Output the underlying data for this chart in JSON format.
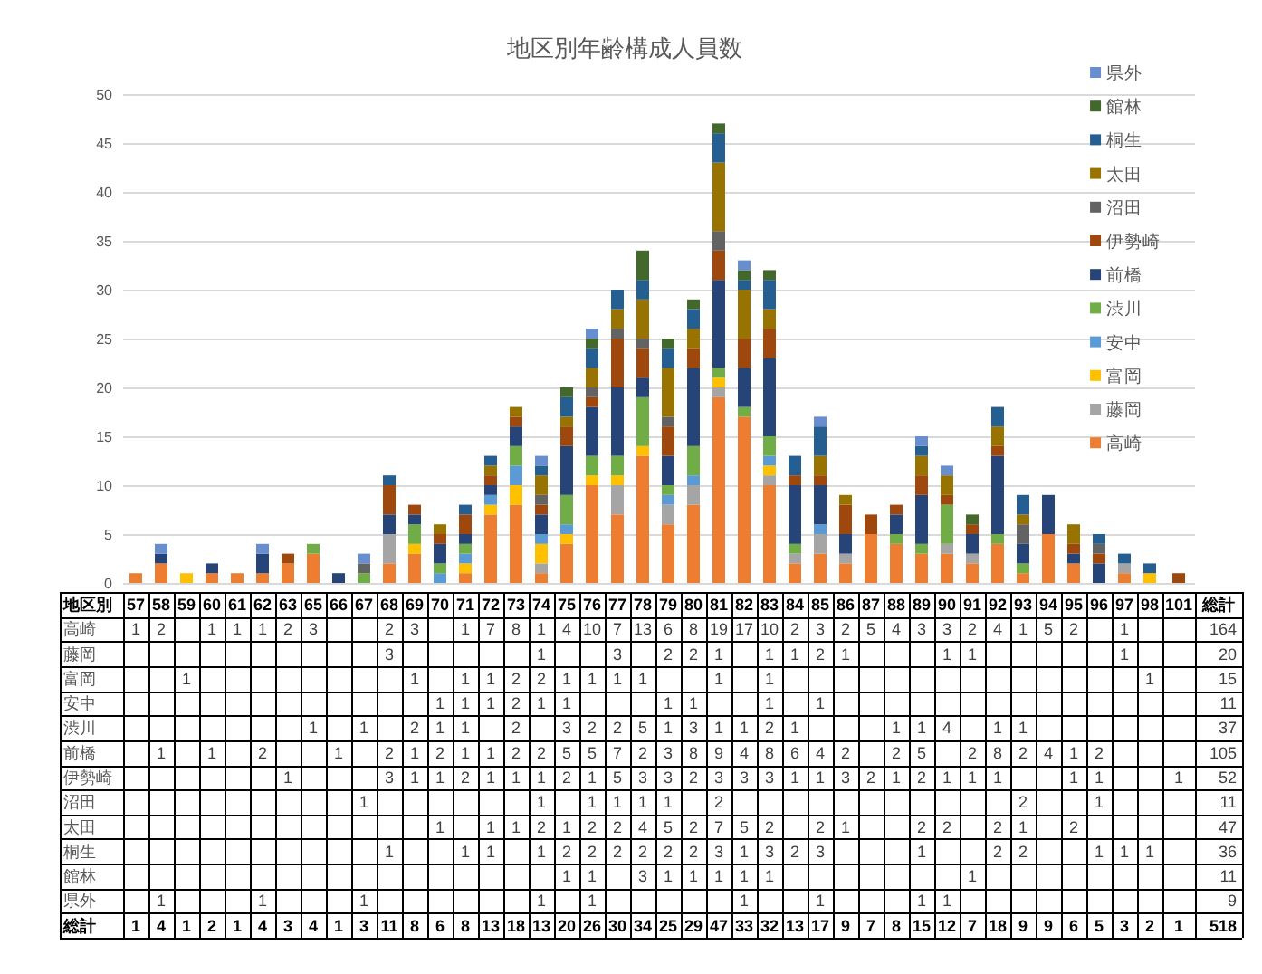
{
  "chart_data": {
    "type": "bar",
    "title": "地区別年齢構成人員数",
    "legend_title": "地区別",
    "categories": [
      "57",
      "58",
      "59",
      "60",
      "61",
      "62",
      "63",
      "65",
      "66",
      "67",
      "68",
      "69",
      "70",
      "71",
      "72",
      "73",
      "74",
      "75",
      "76",
      "77",
      "78",
      "79",
      "80",
      "81",
      "82",
      "83",
      "84",
      "85",
      "86",
      "87",
      "88",
      "89",
      "90",
      "91",
      "92",
      "93",
      "94",
      "95",
      "96",
      "97",
      "98",
      "101"
    ],
    "series": [
      {
        "name": "高崎",
        "color": "#ed7d31",
        "values": [
          1,
          2,
          null,
          1,
          1,
          1,
          2,
          3,
          null,
          null,
          2,
          3,
          null,
          1,
          7,
          8,
          1,
          4,
          10,
          7,
          13,
          6,
          8,
          19,
          17,
          10,
          2,
          3,
          2,
          5,
          4,
          3,
          3,
          2,
          4,
          1,
          5,
          2,
          null,
          1,
          null,
          null
        ]
      },
      {
        "name": "藤岡",
        "color": "#a5a5a5",
        "values": [
          null,
          null,
          null,
          null,
          null,
          null,
          null,
          null,
          null,
          null,
          3,
          null,
          null,
          null,
          null,
          null,
          1,
          null,
          null,
          3,
          null,
          2,
          2,
          1,
          null,
          1,
          1,
          2,
          1,
          null,
          null,
          null,
          1,
          1,
          null,
          null,
          null,
          null,
          null,
          1,
          null,
          null
        ]
      },
      {
        "name": "富岡",
        "color": "#ffc000",
        "values": [
          null,
          null,
          1,
          null,
          null,
          null,
          null,
          null,
          null,
          null,
          null,
          1,
          null,
          1,
          1,
          2,
          2,
          1,
          1,
          1,
          1,
          null,
          null,
          1,
          null,
          1,
          null,
          null,
          null,
          null,
          null,
          null,
          null,
          null,
          null,
          null,
          null,
          null,
          null,
          null,
          1,
          null
        ]
      },
      {
        "name": "安中",
        "color": "#5b9bd5",
        "values": [
          null,
          null,
          null,
          null,
          null,
          null,
          null,
          null,
          null,
          null,
          null,
          null,
          1,
          1,
          1,
          2,
          1,
          1,
          null,
          null,
          null,
          1,
          1,
          null,
          null,
          1,
          null,
          1,
          null,
          null,
          null,
          null,
          null,
          null,
          null,
          null,
          null,
          null,
          null,
          null,
          null,
          null
        ]
      },
      {
        "name": "渋川",
        "color": "#70ad47",
        "values": [
          null,
          null,
          null,
          null,
          null,
          null,
          null,
          1,
          null,
          1,
          null,
          2,
          1,
          1,
          null,
          2,
          null,
          3,
          2,
          2,
          5,
          1,
          3,
          1,
          1,
          2,
          1,
          null,
          null,
          null,
          1,
          1,
          4,
          null,
          1,
          1,
          null,
          null,
          null,
          null,
          null,
          null
        ]
      },
      {
        "name": "前橋",
        "color": "#264478",
        "values": [
          null,
          1,
          null,
          1,
          null,
          2,
          null,
          null,
          1,
          null,
          2,
          1,
          2,
          1,
          1,
          2,
          2,
          5,
          5,
          7,
          2,
          3,
          8,
          9,
          4,
          8,
          6,
          4,
          2,
          null,
          2,
          5,
          null,
          2,
          8,
          2,
          4,
          1,
          2,
          null,
          null,
          null
        ]
      },
      {
        "name": "伊勢崎",
        "color": "#9e480e",
        "values": [
          null,
          null,
          null,
          null,
          null,
          null,
          1,
          null,
          null,
          null,
          3,
          1,
          1,
          2,
          1,
          1,
          1,
          2,
          1,
          5,
          3,
          3,
          2,
          3,
          3,
          3,
          1,
          1,
          3,
          2,
          1,
          2,
          1,
          1,
          1,
          null,
          null,
          1,
          1,
          null,
          null,
          1
        ]
      },
      {
        "name": "沼田",
        "color": "#636363",
        "values": [
          null,
          null,
          null,
          null,
          null,
          null,
          null,
          null,
          null,
          1,
          null,
          null,
          null,
          null,
          null,
          null,
          1,
          null,
          1,
          1,
          1,
          1,
          null,
          2,
          null,
          null,
          null,
          null,
          null,
          null,
          null,
          null,
          null,
          null,
          null,
          2,
          null,
          null,
          1,
          null,
          null,
          null
        ]
      },
      {
        "name": "太田",
        "color": "#997300",
        "values": [
          null,
          null,
          null,
          null,
          null,
          null,
          null,
          null,
          null,
          null,
          null,
          null,
          1,
          null,
          1,
          1,
          2,
          1,
          2,
          2,
          4,
          5,
          2,
          7,
          5,
          2,
          null,
          2,
          1,
          null,
          null,
          2,
          2,
          null,
          2,
          1,
          null,
          2,
          null,
          null,
          null,
          null
        ]
      },
      {
        "name": "桐生",
        "color": "#255e91",
        "values": [
          null,
          null,
          null,
          null,
          null,
          null,
          null,
          null,
          null,
          null,
          1,
          null,
          null,
          1,
          1,
          null,
          1,
          2,
          2,
          2,
          2,
          2,
          2,
          3,
          1,
          3,
          2,
          3,
          null,
          null,
          null,
          1,
          null,
          null,
          2,
          2,
          null,
          null,
          1,
          1,
          1,
          null
        ]
      },
      {
        "name": "館林",
        "color": "#43682b",
        "values": [
          null,
          null,
          null,
          null,
          null,
          null,
          null,
          null,
          null,
          null,
          null,
          null,
          null,
          null,
          null,
          null,
          null,
          1,
          1,
          null,
          3,
          1,
          1,
          1,
          1,
          1,
          null,
          null,
          null,
          null,
          null,
          null,
          null,
          1,
          null,
          null,
          null,
          null,
          null,
          null,
          null,
          null
        ]
      },
      {
        "name": "県外",
        "color": "#698ed0",
        "values": [
          null,
          1,
          null,
          null,
          null,
          1,
          null,
          null,
          null,
          1,
          null,
          null,
          null,
          null,
          null,
          null,
          1,
          null,
          1,
          null,
          null,
          null,
          null,
          null,
          1,
          null,
          null,
          1,
          null,
          null,
          null,
          1,
          1,
          null,
          null,
          null,
          null,
          null,
          null,
          null,
          null,
          null
        ]
      }
    ],
    "stacked": true,
    "ylim": [
      0,
      50
    ],
    "yticks": [
      0,
      5,
      10,
      15,
      20,
      25,
      30,
      35,
      40,
      45,
      50
    ],
    "grid": "y",
    "legend": "top right",
    "data_labels": true,
    "annotations": [
      "総計",
      "164",
      "20",
      "15",
      "11",
      "37",
      "105",
      "52",
      "11",
      "47",
      "36",
      "11",
      "9",
      "総計",
      "1",
      "4",
      "1",
      "2",
      "1",
      "4",
      "3",
      "4",
      "1",
      "3",
      "11",
      "8",
      "6",
      "8",
      "13",
      "18",
      "13",
      "20",
      "26",
      "30",
      "34",
      "25",
      "29",
      "47",
      "33",
      "32",
      "13",
      "17",
      "9",
      "7",
      "8",
      "15",
      "12",
      "7",
      "18",
      "9",
      "9",
      "6",
      "5",
      "3",
      "2",
      "1",
      "518"
    ]
  }
}
